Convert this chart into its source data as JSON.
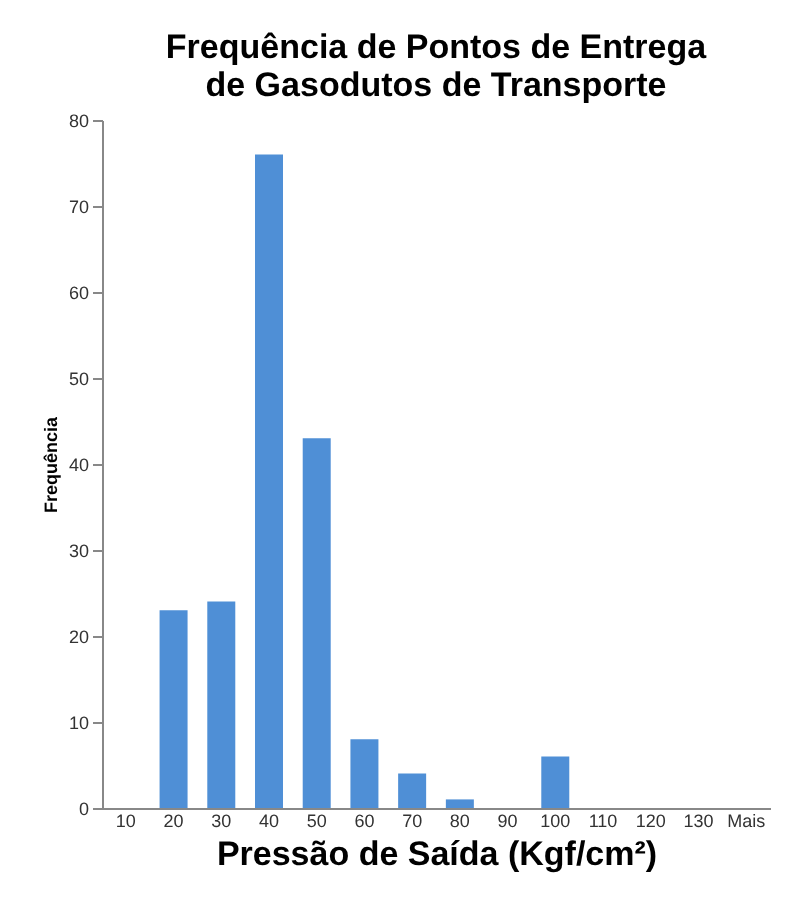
{
  "chart_data": {
    "type": "bar",
    "title": [
      "Frequência de Pontos de Entrega",
      "de Gasodutos de Transporte"
    ],
    "xlabel": "Pressão de Saída (Kgf/cm²)",
    "ylabel": "Frequência",
    "categories": [
      "10",
      "20",
      "30",
      "40",
      "50",
      "60",
      "70",
      "80",
      "90",
      "100",
      "110",
      "120",
      "130",
      "Mais"
    ],
    "values": [
      0,
      23,
      24,
      76,
      43,
      8,
      4,
      1,
      0,
      6,
      0,
      0,
      0,
      0
    ],
    "color": "#4f8fd6",
    "ylim": [
      0,
      80
    ],
    "yticks": [
      0,
      10,
      20,
      30,
      40,
      50,
      60,
      70,
      80
    ],
    "grid": false
  }
}
